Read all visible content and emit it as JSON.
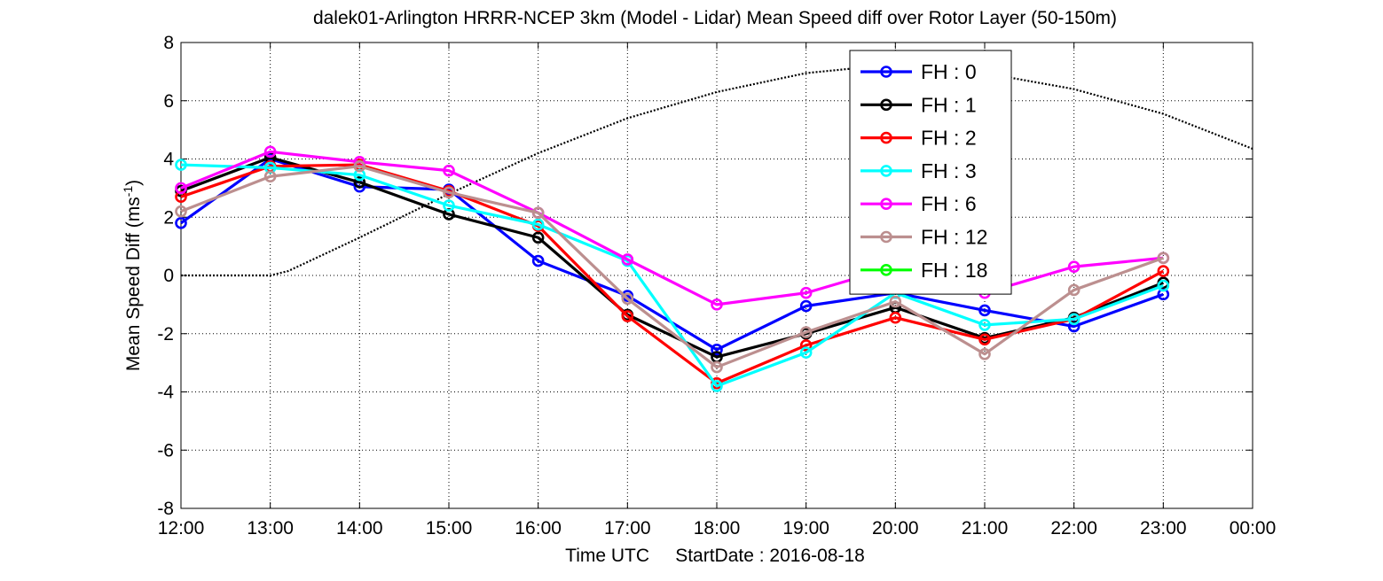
{
  "chart_data": {
    "type": "line",
    "title": "dalek01-Arlington HRRR-NCEP 3km (Model - Lidar) Mean Speed diff over Rotor Layer (50-150m)",
    "xlabel": "Time UTC     StartDate : 2016-08-18",
    "ylabel_main": "Mean Speed Diff (ms",
    "ylabel_sup": "-1",
    "ylabel_close": ")",
    "x_ticks": [
      "12:00",
      "13:00",
      "14:00",
      "15:00",
      "16:00",
      "17:00",
      "18:00",
      "19:00",
      "20:00",
      "21:00",
      "22:00",
      "23:00",
      "00:00"
    ],
    "xlim": [
      0,
      12
    ],
    "ylim": [
      -8,
      8
    ],
    "y_ticks": [
      "-8",
      "-6",
      "-4",
      "-2",
      "0",
      "2",
      "4",
      "6",
      "8"
    ],
    "grid": true,
    "legend_position": "top-right",
    "series": [
      {
        "name": "FH : 0",
        "color": "#0000ff",
        "values": [
          1.8,
          4.0,
          3.05,
          2.95,
          0.5,
          -0.7,
          -2.55,
          -1.05,
          -0.6,
          -1.2,
          -1.75,
          -0.65
        ]
      },
      {
        "name": "FH : 1",
        "color": "#000000",
        "values": [
          2.9,
          4.05,
          3.2,
          2.1,
          1.3,
          -1.35,
          -2.8,
          -2.0,
          -1.1,
          -2.15,
          -1.45,
          -0.25
        ]
      },
      {
        "name": "FH : 2",
        "color": "#ff0000",
        "values": [
          2.7,
          3.75,
          3.8,
          2.9,
          1.7,
          -1.4,
          -3.7,
          -2.4,
          -1.45,
          -2.2,
          -1.5,
          0.15
        ]
      },
      {
        "name": "FH : 3",
        "color": "#00ffff",
        "values": [
          3.8,
          3.7,
          3.45,
          2.4,
          1.75,
          0.5,
          -3.8,
          -2.65,
          -0.6,
          -1.7,
          -1.5,
          -0.35
        ]
      },
      {
        "name": "FH : 6",
        "color": "#ff00ff",
        "values": [
          3.0,
          4.25,
          3.9,
          3.6,
          2.15,
          0.55,
          -1.0,
          -0.6,
          0.3,
          -0.6,
          0.3,
          0.6
        ]
      },
      {
        "name": "FH : 12",
        "color": "#bc8f8f",
        "values": [
          2.2,
          3.4,
          3.75,
          2.85,
          2.15,
          -0.8,
          -3.15,
          -1.95,
          -0.9,
          -2.7,
          -0.5,
          0.6
        ]
      },
      {
        "name": "FH : 18",
        "color": "#00ff00",
        "values": []
      }
    ],
    "reference_curve": {
      "style": "dotted",
      "color": "#000000",
      "x": [
        0,
        1,
        1.2,
        2,
        3,
        4,
        5,
        6,
        7,
        7.5,
        8,
        9,
        10,
        11,
        12
      ],
      "y": [
        0,
        0,
        0.15,
        1.3,
        2.8,
        4.2,
        5.4,
        6.3,
        6.95,
        7.1,
        7.15,
        6.95,
        6.4,
        5.55,
        4.35
      ]
    }
  }
}
